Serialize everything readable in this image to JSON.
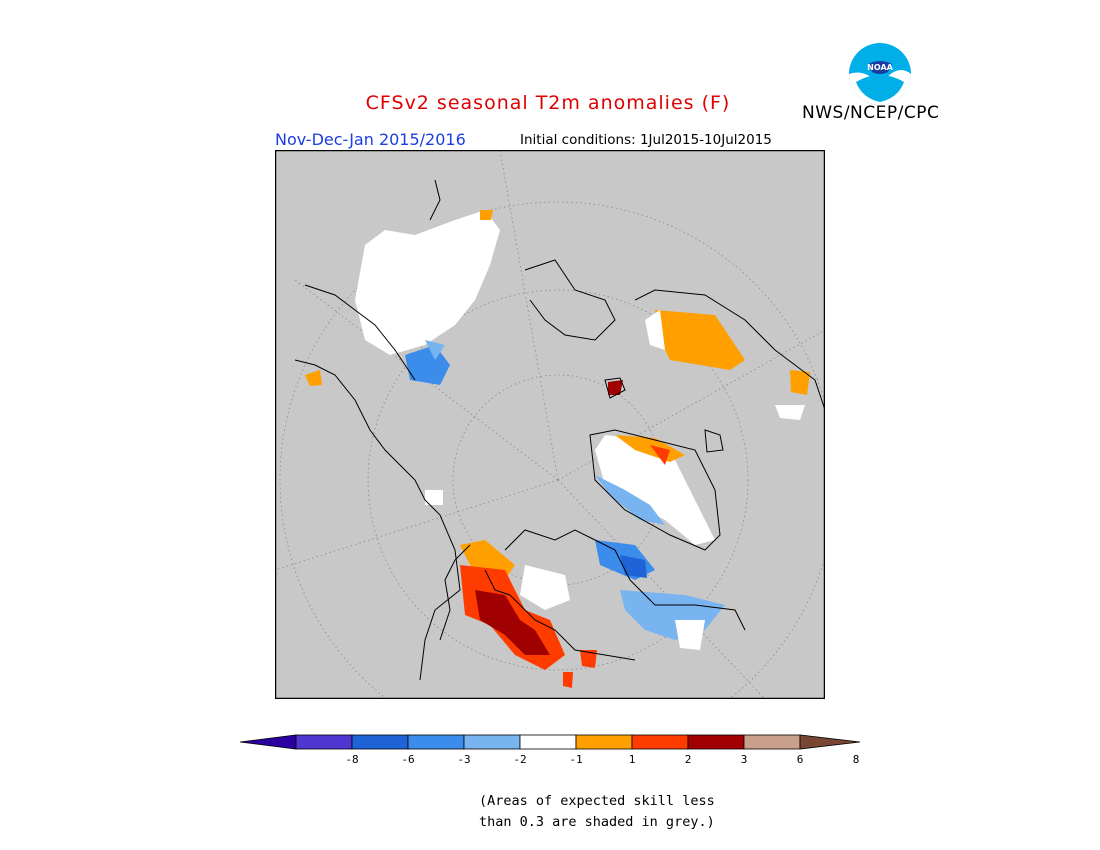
{
  "header": {
    "title": "CFSv2 seasonal T2m anomalies (F)",
    "period": "Nov-Dec-Jan 2015/2016",
    "initial_conditions": "Initial conditions: 1Jul2015-10Jul2015",
    "agency": "NWS/NCEP/CPC"
  },
  "logo": {
    "text": "NOAA"
  },
  "legend": {
    "tick_labels": [
      "-8",
      "-6",
      "-3",
      "-2",
      "-1",
      "1",
      "2",
      "3",
      "6",
      "8"
    ],
    "colors": [
      "#2a00a0",
      "#5036d0",
      "#1e64d8",
      "#3c8cec",
      "#78b4f0",
      "#ffffff",
      "#ffa000",
      "#ff3c00",
      "#a00000",
      "#c8a08c",
      "#784632"
    ],
    "note_line1": "(Areas of expected skill less",
    "note_line2": "than 0.3 are shaded in grey.)"
  }
}
